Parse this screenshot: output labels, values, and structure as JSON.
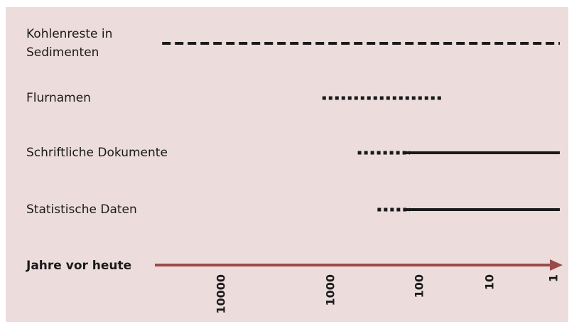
{
  "chart_data": {
    "type": "timeline",
    "x_label": "Jahre vor heute",
    "log_scale": true,
    "xticks": [
      10000,
      1000,
      100,
      10,
      1
    ],
    "line_color": "#1a1a1a",
    "axis_color": "#9b4a4a",
    "background": "#ecdcdc",
    "rows": [
      {
        "label": [
          "Kohlenreste in",
          "Sedimenten"
        ],
        "segments": [
          {
            "style": "dashed",
            "from": 35000,
            "to": 1
          }
        ]
      },
      {
        "label": [
          "Flurnamen"
        ],
        "segments": [
          {
            "style": "dotted",
            "from": 1200,
            "to": 60
          }
        ]
      },
      {
        "label": [
          "Schriftliche Dokumente"
        ],
        "segments": [
          {
            "style": "dotted",
            "from": 500,
            "to": 150
          },
          {
            "style": "solid",
            "from": 150,
            "to": 1
          }
        ]
      },
      {
        "label": [
          "Statistische Daten"
        ],
        "segments": [
          {
            "style": "dotted",
            "from": 300,
            "to": 150
          },
          {
            "style": "solid",
            "from": 150,
            "to": 1
          }
        ]
      }
    ]
  }
}
